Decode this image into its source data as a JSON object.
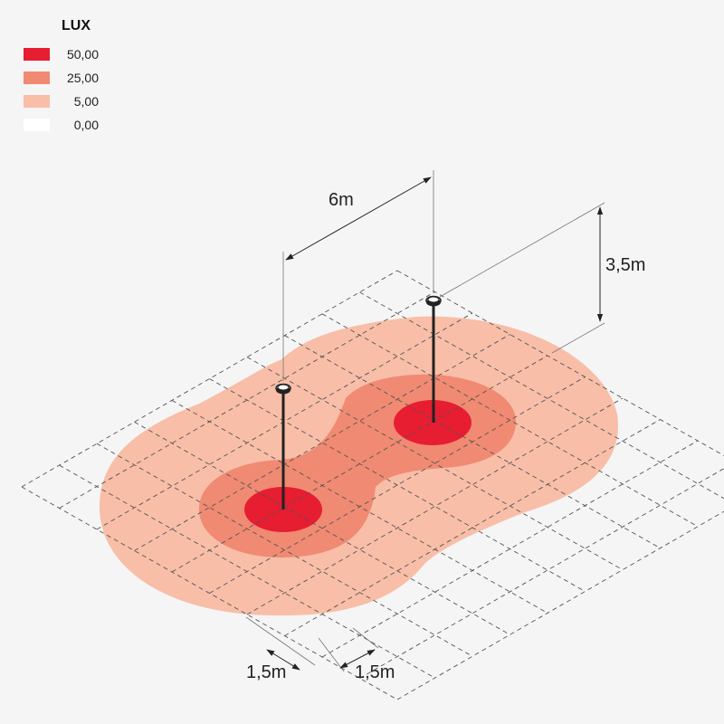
{
  "legend": {
    "title": "LUX",
    "items": [
      {
        "label": "50,00",
        "color": "#e71d32"
      },
      {
        "label": "25,00",
        "color": "#f08a72"
      },
      {
        "label": "5,00",
        "color": "#f8bea8"
      },
      {
        "label": "0,00",
        "color": "#ffffff"
      }
    ]
  },
  "dimensions": {
    "pole_spacing": "6m",
    "pole_height": "3,5m",
    "grid_spacing_left": "1,5m",
    "grid_spacing_right": "1,5m"
  },
  "colors": {
    "background": "#f5f5f5",
    "grid": "#555555",
    "pole": "#222222"
  }
}
